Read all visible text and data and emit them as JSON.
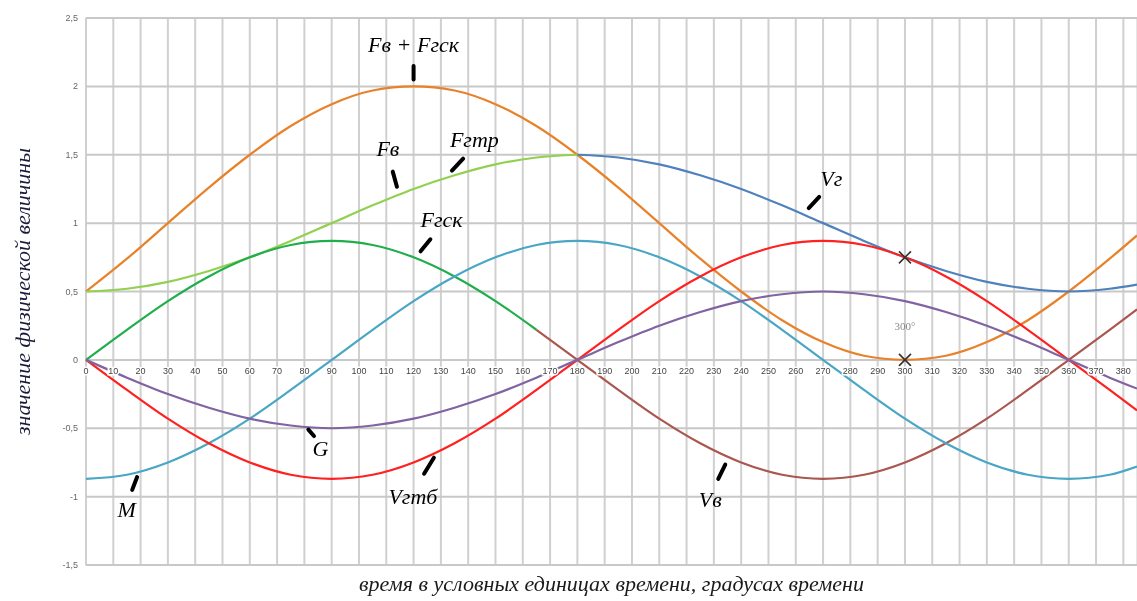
{
  "chart_data": {
    "type": "line",
    "xlabel": "время в условных единицах времени, градусах времени",
    "ylabel": "значение физической величины",
    "xlim": [
      0,
      385
    ],
    "ylim": [
      -1.5,
      2.5
    ],
    "xticks": [
      0,
      10,
      20,
      30,
      40,
      50,
      60,
      70,
      80,
      90,
      100,
      110,
      120,
      130,
      140,
      150,
      160,
      170,
      180,
      190,
      200,
      210,
      220,
      230,
      240,
      250,
      260,
      270,
      280,
      290,
      300,
      310,
      320,
      330,
      340,
      350,
      360,
      370,
      380
    ],
    "yticks": [
      {
        "value": -1.5,
        "label": "-1,5"
      },
      {
        "value": -1,
        "label": "-1"
      },
      {
        "value": -0.5,
        "label": "-0,5"
      },
      0,
      {
        "value": 0.5,
        "label": "0,5"
      },
      1,
      {
        "value": 1.5,
        "label": "1,5"
      },
      2,
      {
        "value": 2.5,
        "label": "2,5"
      }
    ],
    "grid": true,
    "line_style": "solid",
    "marker": "none",
    "series": [
      {
        "name": "Fв + Fгск",
        "color": "#e8822a",
        "x": [
          0,
          15,
          30,
          45,
          60,
          75,
          90,
          105,
          120,
          135,
          150,
          165,
          180,
          195,
          210,
          225,
          240,
          255,
          270,
          285,
          300,
          315,
          330,
          345,
          360,
          375,
          385
        ],
        "values": [
          0.5,
          0.74,
          1,
          1.26,
          1.5,
          1.71,
          1.87,
          1.97,
          2,
          1.97,
          1.87,
          1.71,
          1.5,
          1.26,
          1,
          0.74,
          0.5,
          0.29,
          0.13,
          0.03,
          0,
          0.03,
          0.13,
          0.29,
          0.5,
          0.74,
          0.91
        ]
      },
      {
        "name": "Fв",
        "color": "#92d050",
        "x": [
          0,
          15,
          30,
          45,
          60,
          75,
          90,
          105,
          120,
          135,
          150,
          165,
          180
        ],
        "values": [
          0.5,
          0.52,
          0.57,
          0.65,
          0.75,
          0.87,
          1,
          1.13,
          1.25,
          1.35,
          1.43,
          1.48,
          1.5
        ]
      },
      {
        "name": "Vг",
        "color": "#4f81bd",
        "x": [
          180,
          195,
          210,
          225,
          240,
          255,
          270,
          285,
          300,
          315,
          330,
          345,
          360,
          375,
          385
        ],
        "values": [
          1.5,
          1.48,
          1.43,
          1.35,
          1.25,
          1.13,
          1,
          0.87,
          0.75,
          0.65,
          0.57,
          0.52,
          0.5,
          0.52,
          0.55
        ]
      },
      {
        "name": "Fгск",
        "color": "#1fae4b",
        "x": [
          0,
          15,
          30,
          45,
          60,
          75,
          90,
          105,
          120,
          135,
          150,
          165
        ],
        "values": [
          0,
          0.22,
          0.43,
          0.61,
          0.75,
          0.84,
          0.87,
          0.84,
          0.75,
          0.61,
          0.43,
          0.22
        ]
      },
      {
        "name": "Vв",
        "color": "#a9574f",
        "x": [
          165,
          180,
          195,
          210,
          225,
          240,
          255,
          270,
          285,
          300,
          315,
          330,
          345,
          360,
          375,
          385
        ],
        "values": [
          0.22,
          0,
          -0.22,
          -0.43,
          -0.61,
          -0.75,
          -0.84,
          -0.87,
          -0.84,
          -0.75,
          -0.61,
          -0.43,
          -0.22,
          0,
          0.22,
          0.37
        ]
      },
      {
        "name": "M",
        "color": "#4aa6c5",
        "x": [
          0,
          15,
          30,
          45,
          60,
          75,
          90,
          105,
          120,
          135,
          150,
          165,
          180,
          195,
          210,
          225,
          240,
          255,
          270,
          285,
          300,
          315,
          330,
          345,
          360,
          375,
          385
        ],
        "values": [
          -0.87,
          -0.84,
          -0.75,
          -0.61,
          -0.43,
          -0.22,
          0,
          0.22,
          0.43,
          0.61,
          0.75,
          0.84,
          0.87,
          0.84,
          0.75,
          0.61,
          0.43,
          0.22,
          0,
          -0.22,
          -0.43,
          -0.61,
          -0.75,
          -0.84,
          -0.87,
          -0.84,
          -0.78
        ]
      },
      {
        "name": "Vгтб",
        "color": "#ff2020",
        "x": [
          0,
          15,
          30,
          45,
          60,
          75,
          90,
          105,
          120,
          135,
          150,
          165,
          180,
          195,
          210,
          225,
          240,
          255,
          270,
          285,
          300,
          315,
          330,
          345,
          360,
          375,
          385
        ],
        "values": [
          0,
          -0.22,
          -0.43,
          -0.61,
          -0.75,
          -0.84,
          -0.87,
          -0.84,
          -0.75,
          -0.61,
          -0.43,
          -0.22,
          0,
          0.22,
          0.43,
          0.61,
          0.75,
          0.84,
          0.87,
          0.84,
          0.75,
          0.61,
          0.43,
          0.22,
          0,
          -0.22,
          -0.37
        ]
      },
      {
        "name": "G",
        "color": "#8064a2",
        "x": [
          0,
          15,
          30,
          45,
          60,
          75,
          90,
          105,
          120,
          135,
          150,
          165,
          180,
          195,
          210,
          225,
          240,
          255,
          270,
          285,
          300,
          315,
          330,
          345,
          360,
          375,
          385
        ],
        "values": [
          0,
          -0.13,
          -0.25,
          -0.35,
          -0.43,
          -0.48,
          -0.5,
          -0.48,
          -0.43,
          -0.35,
          -0.25,
          -0.13,
          0,
          0.13,
          0.25,
          0.35,
          0.43,
          0.48,
          0.5,
          0.48,
          0.43,
          0.35,
          0.25,
          0.13,
          0,
          -0.13,
          -0.21
        ]
      },
      {
        "type": "scatter",
        "marker": "cross",
        "color": "#333333",
        "x": [
          300,
          300
        ],
        "values": [
          0,
          0.75
        ]
      }
    ],
    "annotations": [
      {
        "text": "Fгтр",
        "x": 132,
        "y": 1.34
      },
      {
        "text": "300°",
        "x": 300,
        "y": 0
      }
    ]
  }
}
